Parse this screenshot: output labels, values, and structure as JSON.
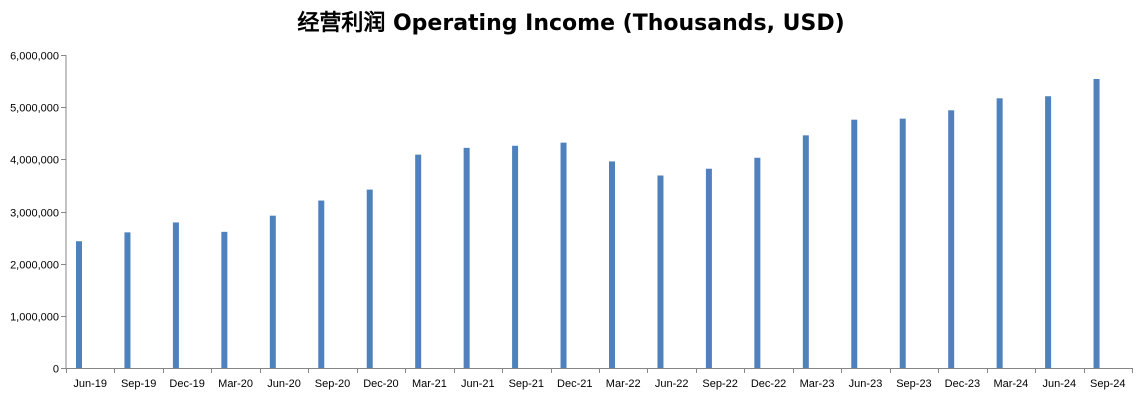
{
  "chart_data": {
    "type": "bar",
    "title": "经营利润 Operating Income (Thousands, USD)",
    "xlabel": "",
    "ylabel": "",
    "ylim": [
      0,
      6000000
    ],
    "yticks": [
      0,
      1000000,
      2000000,
      3000000,
      4000000,
      5000000,
      6000000
    ],
    "ytick_labels": [
      "0",
      "1,000,000",
      "2,000,000",
      "3,000,000",
      "4,000,000",
      "5,000,000",
      "6,000,000"
    ],
    "grid": false,
    "legend": "none",
    "bar_color": "#4f81bd",
    "categories": [
      "Jun-19",
      "Sep-19",
      "Dec-19",
      "Mar-20",
      "Jun-20",
      "Sep-20",
      "Dec-20",
      "Mar-21",
      "Jun-21",
      "Sep-21",
      "Dec-21",
      "Mar-22",
      "Jun-22",
      "Sep-22",
      "Dec-22",
      "Mar-23",
      "Jun-23",
      "Sep-23",
      "Dec-23",
      "Mar-24",
      "Jun-24",
      "Sep-24"
    ],
    "values": [
      2430000,
      2600000,
      2790000,
      2610000,
      2920000,
      3210000,
      3420000,
      4090000,
      4220000,
      4260000,
      4320000,
      3960000,
      3690000,
      3820000,
      4030000,
      4460000,
      4760000,
      4780000,
      4940000,
      5170000,
      5210000,
      5540000
    ]
  }
}
